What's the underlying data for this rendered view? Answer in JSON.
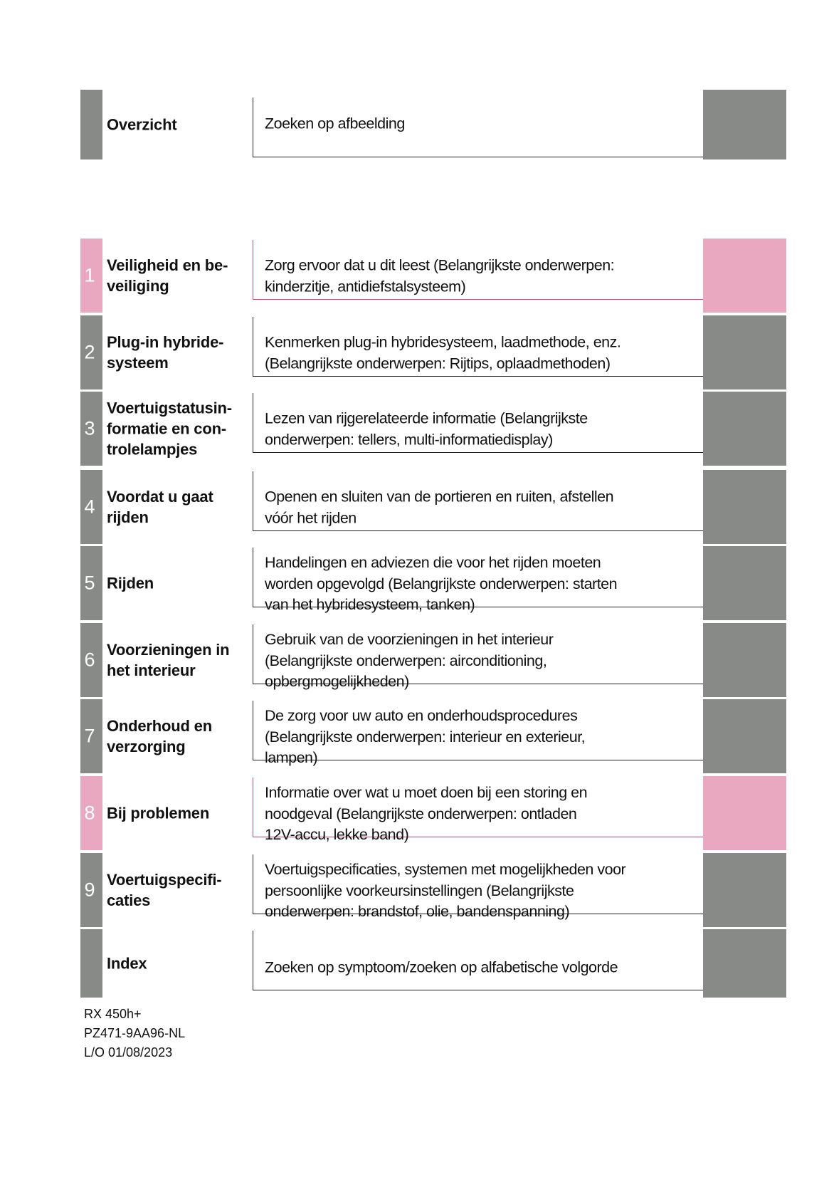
{
  "colors": {
    "gray": "#878a86",
    "pink": "#eaa8c0",
    "pink_line": "#e0407f",
    "line": "#222222"
  },
  "overview": {
    "label": "Overzicht",
    "description": "Zoeken op afbeelding"
  },
  "chapters": [
    {
      "number": "1",
      "label": "Veiligheid en be-\nveiliging",
      "description": "Zorg ervoor dat u dit leest (Belangrijkste onderwerpen:\nkinderzitje, antidiefstalsysteem)",
      "highlight": true
    },
    {
      "number": "2",
      "label": "Plug-in hybride-\nsysteem",
      "description": "Kenmerken plug-in hybridesysteem, laadmethode, enz.\n(Belangrijkste onderwerpen: Rijtips, oplaadmethoden)",
      "highlight": false
    },
    {
      "number": "3",
      "label": "Voertuigstatusin-\nformatie en con-\ntrolelampjes",
      "description": "Lezen van rijgerelateerde informatie (Belangrijkste\nonderwerpen: tellers, multi-informatiedisplay)",
      "highlight": false
    },
    {
      "number": "4",
      "label": "Voordat u gaat\nrijden",
      "description": "Openen en sluiten van de portieren en ruiten, afstellen\nvóór het rijden",
      "highlight": false
    },
    {
      "number": "5",
      "label": "Rijden",
      "description": "Handelingen en adviezen die voor het rijden moeten\nworden opgevolgd (Belangrijkste onderwerpen: starten\nvan het hybridesysteem, tanken)",
      "highlight": false
    },
    {
      "number": "6",
      "label": "Voorzieningen in\nhet interieur",
      "description": "Gebruik van de voorzieningen in het interieur\n(Belangrijkste onderwerpen: airconditioning,\nopbergmogelijkheden)",
      "highlight": false
    },
    {
      "number": "7",
      "label": "Onderhoud en\nverzorging",
      "description": "De zorg voor uw auto en onderhoudsprocedures\n(Belangrijkste onderwerpen: interieur en exterieur,\nlampen)",
      "highlight": false
    },
    {
      "number": "8",
      "label": "Bij problemen",
      "description": "Informatie over wat u moet doen bij een storing en\nnoodgeval (Belangrijkste onderwerpen: ontladen\n12V-accu, lekke band)",
      "highlight": true
    },
    {
      "number": "9",
      "label": "Voertuigspecifi-\ncaties",
      "description": "Voertuigspecificaties, systemen met mogelijkheden voor\npersoonlijke voorkeursinstellingen (Belangrijkste\nonderwerpen: brandstof, olie, bandenspanning)",
      "highlight": false
    },
    {
      "number": "",
      "label": "Index",
      "description": "Zoeken op symptoom/zoeken op alfabetische volgorde",
      "highlight": false
    }
  ],
  "footer": {
    "model": "RX 450h+",
    "code": "PZ471-9AA96-NL",
    "date": "L/O 01/08/2023"
  }
}
